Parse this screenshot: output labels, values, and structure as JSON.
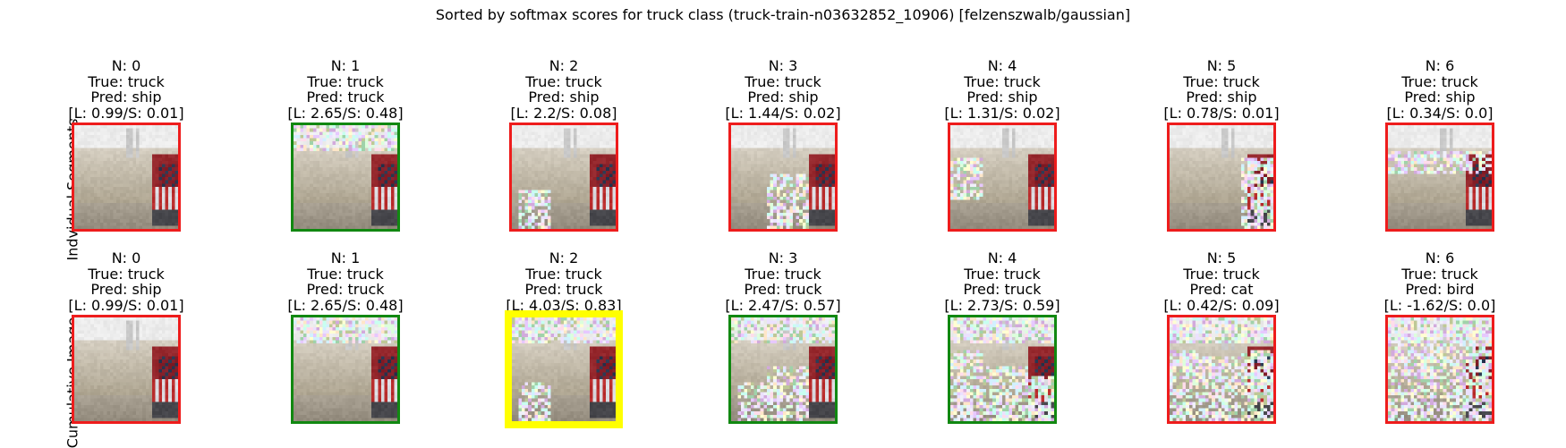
{
  "title": "Sorted by softmax scores for truck class (truck-train-n03632852_10906) [felzenszwalb/gaussian]",
  "rows": [
    {
      "label": "Indvidual Segments",
      "panels": [
        {
          "n": "N: 0",
          "true": "True: truck",
          "pred": "Pred: ship",
          "scores": "[L: 0.99/S: 0.01]",
          "frame": "red",
          "noise": "none"
        },
        {
          "n": "N: 1",
          "true": "True: truck",
          "pred": "Pred: truck",
          "scores": "[L: 2.65/S: 0.48]",
          "frame": "green",
          "noise": "top"
        },
        {
          "n": "N: 2",
          "true": "True: truck",
          "pred": "Pred: ship",
          "scores": "[L: 2.2/S: 0.08]",
          "frame": "red",
          "noise": "bottom-left"
        },
        {
          "n": "N: 3",
          "true": "True: truck",
          "pred": "Pred: ship",
          "scores": "[L: 1.44/S: 0.02]",
          "frame": "red",
          "noise": "bottom-center"
        },
        {
          "n": "N: 4",
          "true": "True: truck",
          "pred": "Pred: ship",
          "scores": "[L: 1.31/S: 0.02]",
          "frame": "red",
          "noise": "left-patch"
        },
        {
          "n": "N: 5",
          "true": "True: truck",
          "pred": "Pred: ship",
          "scores": "[L: 0.78/S: 0.01]",
          "frame": "red",
          "noise": "truck"
        },
        {
          "n": "N: 6",
          "true": "True: truck",
          "pred": "Pred: ship",
          "scores": "[L: 0.34/S: 0.0]",
          "frame": "red",
          "noise": "mid-band"
        }
      ]
    },
    {
      "label": "Cumulative Image",
      "panels": [
        {
          "n": "N: 0",
          "true": "True: truck",
          "pred": "Pred: ship",
          "scores": "[L: 0.99/S: 0.01]",
          "frame": "red",
          "noise": "none"
        },
        {
          "n": "N: 1",
          "true": "True: truck",
          "pred": "Pred: truck",
          "scores": "[L: 2.65/S: 0.48]",
          "frame": "green",
          "noise": "top"
        },
        {
          "n": "N: 2",
          "true": "True: truck",
          "pred": "Pred: truck",
          "scores": "[L: 4.03/S: 0.83]",
          "frame": "yellow",
          "noise": "top+bottom-left"
        },
        {
          "n": "N: 3",
          "true": "True: truck",
          "pred": "Pred: truck",
          "scores": "[L: 2.47/S: 0.57]",
          "frame": "green",
          "noise": "cum3"
        },
        {
          "n": "N: 4",
          "true": "True: truck",
          "pred": "Pred: truck",
          "scores": "[L: 2.73/S: 0.59]",
          "frame": "green",
          "noise": "cum4"
        },
        {
          "n": "N: 5",
          "true": "True: truck",
          "pred": "Pred: cat",
          "scores": "[L: 0.42/S: 0.09]",
          "frame": "red",
          "noise": "cum5"
        },
        {
          "n": "N: 6",
          "true": "True: truck",
          "pred": "Pred: bird",
          "scores": "[L: -1.62/S: 0.0]",
          "frame": "red",
          "noise": "cum6"
        }
      ]
    }
  ],
  "colors": {
    "frame_red": "#ee1c1c",
    "frame_green": "#118811",
    "frame_yellow": "#ffff00"
  }
}
